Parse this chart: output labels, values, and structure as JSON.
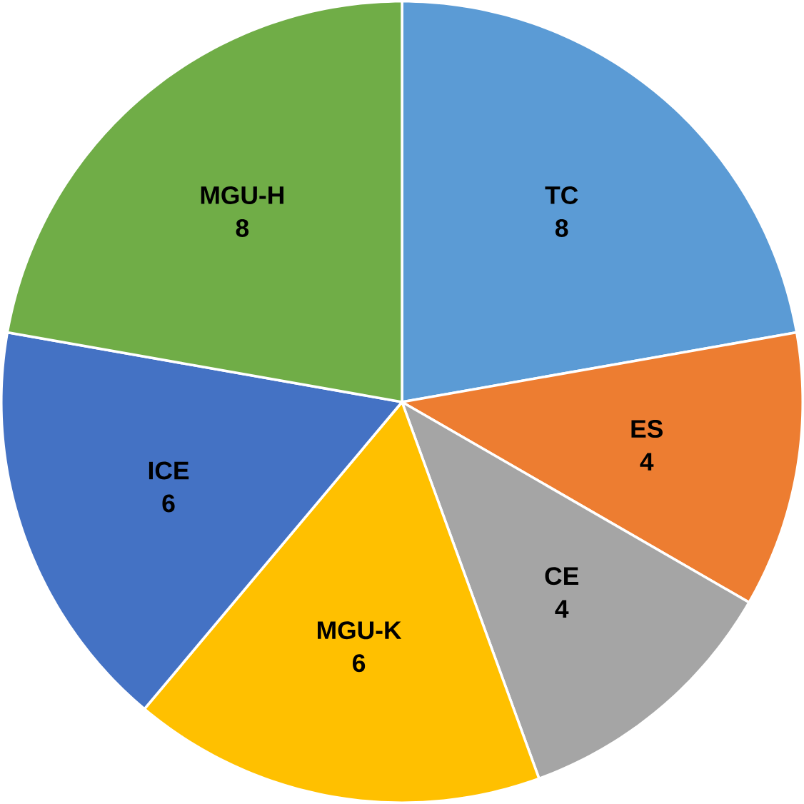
{
  "chart_data": {
    "type": "pie",
    "categories": [
      "TC",
      "ES",
      "CE",
      "MGU-K",
      "ICE",
      "MGU-H"
    ],
    "values": [
      8,
      4,
      4,
      6,
      6,
      8
    ],
    "colors": [
      "#5b9bd5",
      "#ed7d31",
      "#a5a5a5",
      "#ffc000",
      "#4472c4",
      "#70ad47"
    ],
    "data_labels": true
  }
}
